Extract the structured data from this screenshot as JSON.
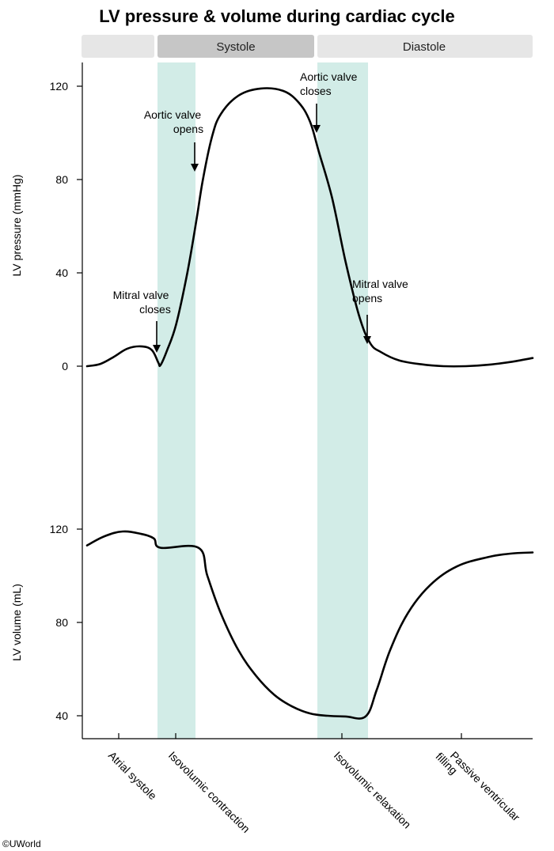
{
  "title": "LV pressure & volume during cardiac cycle",
  "credit": "©UWorld",
  "colors": {
    "line": "#000000",
    "isovolumic_band": "#d2ece7",
    "phase_light": "#e6e6e6",
    "phase_dark": "#c6c6c6"
  },
  "phase_bar": [
    {
      "label": ""
    },
    {
      "label": "Systole"
    },
    {
      "label": "Diastole"
    }
  ],
  "annotations": [
    {
      "lines": [
        "Mitral valve",
        "closes"
      ]
    },
    {
      "lines": [
        "Aortic valve",
        "opens"
      ]
    },
    {
      "lines": [
        "Aortic valve",
        "closes"
      ]
    },
    {
      "lines": [
        "Mitral valve",
        "opens"
      ]
    }
  ],
  "chart_data": [
    {
      "type": "line",
      "ylabel": "LV  pressure (mmHg)",
      "ylim": [
        0,
        120
      ],
      "yticks": [
        0,
        40,
        80,
        120
      ],
      "x_units": "normalized cycle time (0 = start, 1 = end)",
      "series": [
        {
          "points": [
            [
              0.0,
              0
            ],
            [
              0.03,
              1
            ],
            [
              0.06,
              4
            ],
            [
              0.09,
              7.5
            ],
            [
              0.12,
              8.5
            ],
            [
              0.145,
              7
            ],
            [
              0.16,
              1.5
            ],
            [
              0.165,
              0.5
            ],
            [
              0.18,
              7
            ],
            [
              0.2,
              18
            ],
            [
              0.225,
              40
            ],
            [
              0.245,
              62
            ],
            [
              0.26,
              80
            ],
            [
              0.28,
              98
            ],
            [
              0.3,
              108
            ],
            [
              0.34,
              116
            ],
            [
              0.39,
              119
            ],
            [
              0.44,
              118
            ],
            [
              0.475,
              113
            ],
            [
              0.5,
              105
            ],
            [
              0.52,
              92
            ],
            [
              0.55,
              72
            ],
            [
              0.58,
              45
            ],
            [
              0.61,
              22
            ],
            [
              0.635,
              10
            ],
            [
              0.66,
              6
            ],
            [
              0.7,
              2.5
            ],
            [
              0.75,
              0.8
            ],
            [
              0.8,
              0
            ],
            [
              0.85,
              0
            ],
            [
              0.9,
              0.6
            ],
            [
              0.95,
              1.8
            ],
            [
              1.0,
              3.5
            ]
          ]
        }
      ]
    },
    {
      "type": "line",
      "ylabel": "LV volume (mL)",
      "ylim": [
        40,
        120
      ],
      "yticks": [
        40,
        80,
        120
      ],
      "x_units": "normalized cycle time (0 = start, 1 = end)",
      "series": [
        {
          "points": [
            [
              0.0,
              113
            ],
            [
              0.04,
              117
            ],
            [
              0.08,
              119
            ],
            [
              0.12,
              118
            ],
            [
              0.15,
              116
            ],
            [
              0.165,
              112
            ],
            [
              0.25,
              112
            ],
            [
              0.27,
              100
            ],
            [
              0.3,
              84
            ],
            [
              0.34,
              68
            ],
            [
              0.38,
              57
            ],
            [
              0.42,
              49
            ],
            [
              0.46,
              44
            ],
            [
              0.5,
              41
            ],
            [
              0.54,
              40
            ],
            [
              0.58,
              39.7
            ],
            [
              0.625,
              39.7
            ],
            [
              0.65,
              51
            ],
            [
              0.68,
              68
            ],
            [
              0.72,
              84
            ],
            [
              0.77,
              96
            ],
            [
              0.83,
              104
            ],
            [
              0.9,
              108
            ],
            [
              0.95,
              109.5
            ],
            [
              1.0,
              110
            ]
          ]
        }
      ]
    }
  ],
  "x_categories": [
    {
      "label": "Atrial systole"
    },
    {
      "label": "Isovolumic contraction"
    },
    {
      "label": "Isovolumic relaxation"
    },
    {
      "label": "Passive ventricular filling"
    }
  ]
}
